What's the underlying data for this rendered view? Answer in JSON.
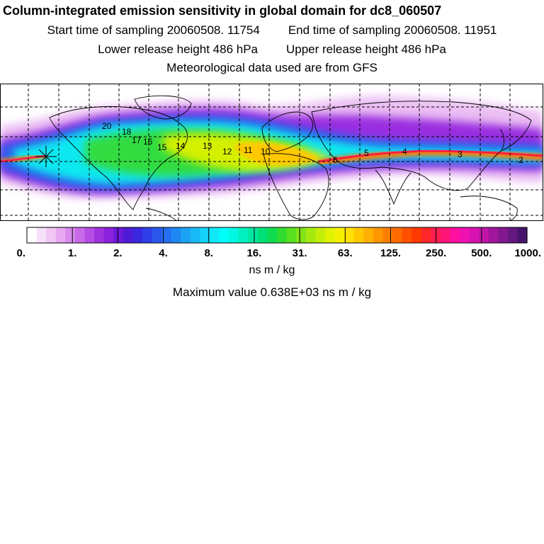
{
  "header": {
    "title": "Column-integrated emission sensitivity in global domain for dc8_060507",
    "start_label": "Start time of sampling 20060508. 11754",
    "end_label": "End time of sampling 20060508. 11951",
    "lower_label": "Lower release height  486 hPa",
    "upper_label": "Upper release height  486 hPa",
    "met_label": "Meteorological data used are from GFS"
  },
  "map": {
    "release_marker": "star-marker",
    "trajectory_labels": [
      "20",
      "18",
      "17",
      "16",
      "15",
      "14",
      "13",
      "12",
      "11",
      "10",
      "6",
      "5",
      "4",
      "3",
      "2"
    ]
  },
  "colorbar": {
    "tick_labels": [
      "0.",
      "1.",
      "2.",
      "4.",
      "8.",
      "16.",
      "31.",
      "63.",
      "125.",
      "250.",
      "500.",
      "1000."
    ],
    "colors": [
      "#ffffff",
      "#f6e2f8",
      "#efc6f4",
      "#e8a8f0",
      "#d88aee",
      "#c96ae8",
      "#b64de4",
      "#a032e0",
      "#8a22dc",
      "#6c1ad8",
      "#4f1ad6",
      "#3a28e0",
      "#2f3ee8",
      "#2a56ec",
      "#2470f0",
      "#2088f2",
      "#1ca2f4",
      "#18baf6",
      "#14d2f8",
      "#10e8f8",
      "#00fff8",
      "#00f8e0",
      "#00f0c0",
      "#00e8a0",
      "#00e078",
      "#10dc50",
      "#30dc30",
      "#58e020",
      "#80e418",
      "#a4ea10",
      "#c4ee08",
      "#e0f200",
      "#f6f000",
      "#ffe000",
      "#ffc800",
      "#ffb000",
      "#ff9800",
      "#ff8000",
      "#ff6a00",
      "#ff5000",
      "#ff3a00",
      "#ff2828",
      "#ff1e50",
      "#ff1478",
      "#ff10a0",
      "#f010b0",
      "#d812b0",
      "#c014a8",
      "#a0169c",
      "#821890",
      "#641880",
      "#46146c"
    ]
  },
  "units": "ns m / kg",
  "maximum": "Maximum value  0.638E+03 ns m / kg"
}
